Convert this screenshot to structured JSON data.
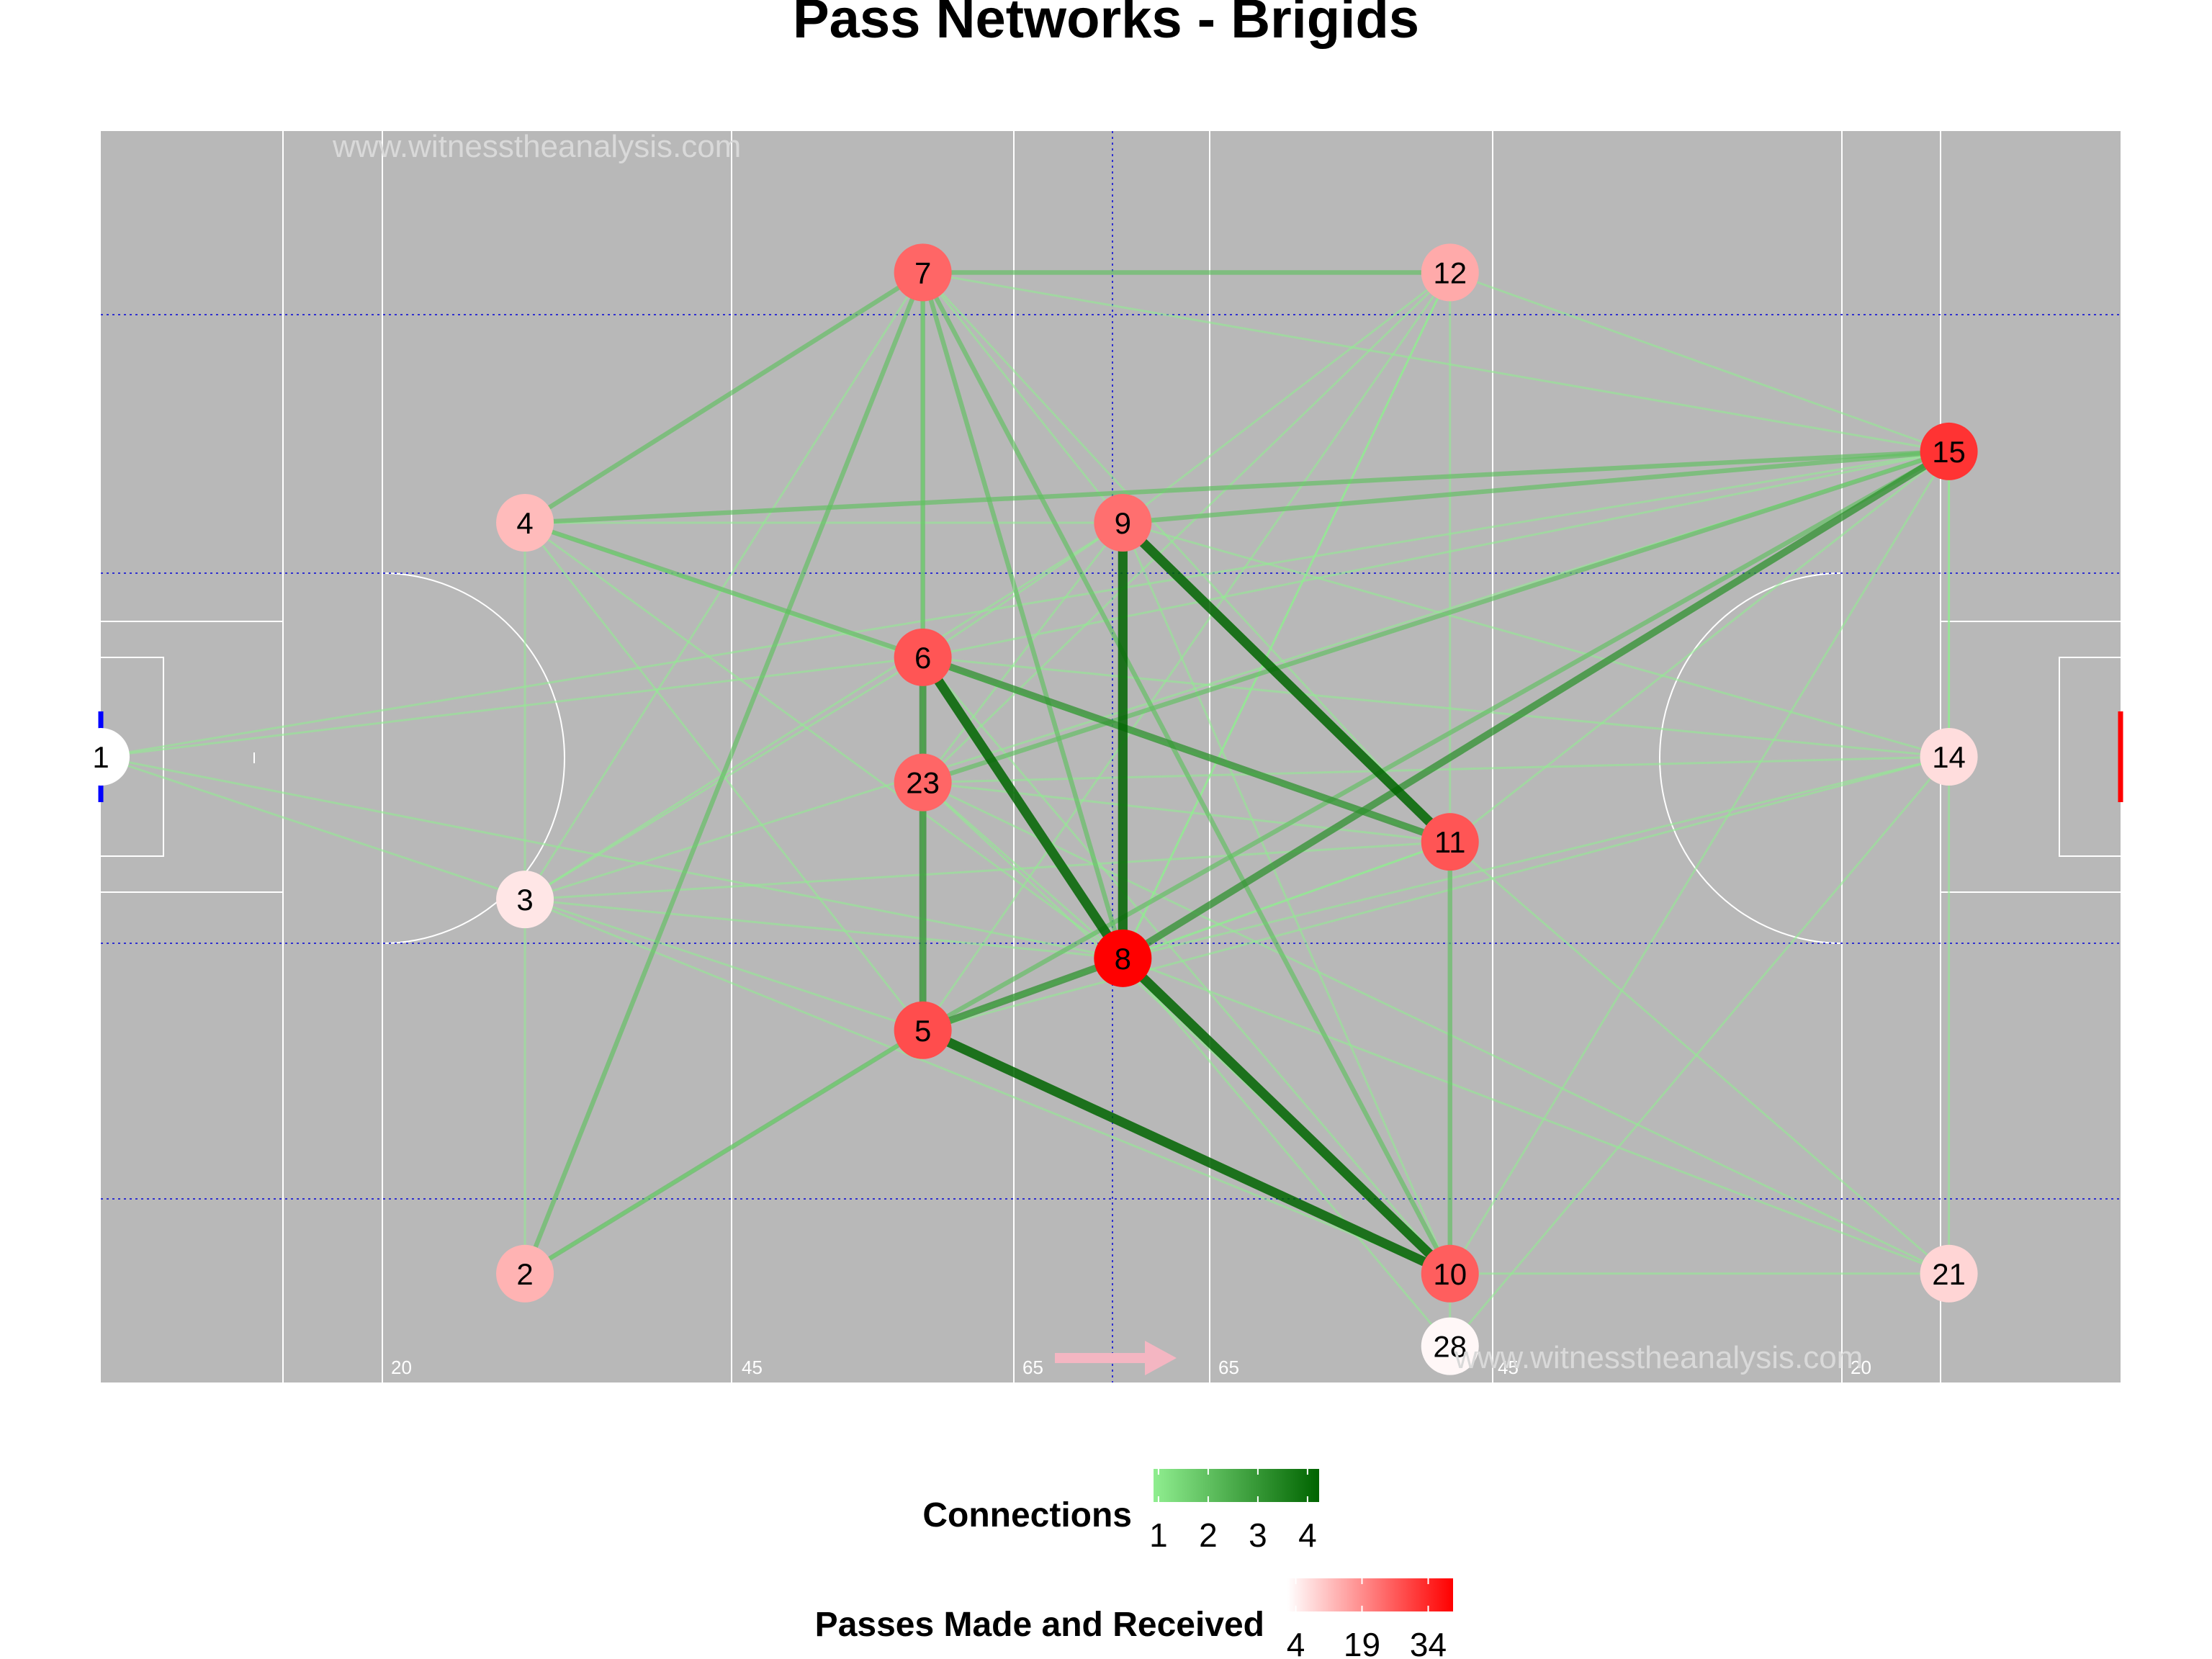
{
  "title": "Pass Networks - Brigids",
  "watermark": "www.witnesstheanalysis.com",
  "distance_labels": [
    "20",
    "45",
    "65",
    "65",
    "45",
    "20"
  ],
  "colors": {
    "pitch": "#b8b8b8",
    "pitch_lines": "#ffffff",
    "guide_lines": "#3030d0",
    "conn_low": "#90ee90",
    "conn_high": "#006400",
    "node_low": "#ffffff",
    "node_high": "#ff0000",
    "arrow": "#f4b6c2",
    "goal_left": "#0000ff",
    "goal_right": "#ff0000"
  },
  "chart_data": {
    "type": "network",
    "title": "Pass Networks - Brigids",
    "nodes": [
      {
        "id": "1",
        "x": 0.0,
        "y": 0.5,
        "passes": 4
      },
      {
        "id": "2",
        "x": 0.21,
        "y": 0.087,
        "passes": 13
      },
      {
        "id": "3",
        "x": 0.21,
        "y": 0.386,
        "passes": 7
      },
      {
        "id": "4",
        "x": 0.21,
        "y": 0.687,
        "passes": 12
      },
      {
        "id": "5",
        "x": 0.407,
        "y": 0.2815,
        "passes": 25
      },
      {
        "id": "6",
        "x": 0.407,
        "y": 0.5795,
        "passes": 24
      },
      {
        "id": "7",
        "x": 0.407,
        "y": 0.887,
        "passes": 22
      },
      {
        "id": "23",
        "x": 0.407,
        "y": 0.4795,
        "passes": 22
      },
      {
        "id": "8",
        "x": 0.506,
        "y": 0.339,
        "passes": 34
      },
      {
        "id": "9",
        "x": 0.506,
        "y": 0.687,
        "passes": 21
      },
      {
        "id": "10",
        "x": 0.668,
        "y": 0.087,
        "passes": 23
      },
      {
        "id": "11",
        "x": 0.668,
        "y": 0.432,
        "passes": 24
      },
      {
        "id": "12",
        "x": 0.668,
        "y": 0.887,
        "passes": 14
      },
      {
        "id": "28",
        "x": 0.668,
        "y": 0.029,
        "passes": 5
      },
      {
        "id": "14",
        "x": 0.915,
        "y": 0.5,
        "passes": 8
      },
      {
        "id": "15",
        "x": 0.915,
        "y": 0.744,
        "passes": 28
      },
      {
        "id": "21",
        "x": 0.915,
        "y": 0.087,
        "passes": 9
      }
    ],
    "edges": [
      [
        "9",
        "8",
        4
      ],
      [
        "9",
        "11",
        4
      ],
      [
        "6",
        "11",
        3
      ],
      [
        "6",
        "8",
        4
      ],
      [
        "5",
        "8",
        3
      ],
      [
        "5",
        "10",
        4
      ],
      [
        "8",
        "10",
        4
      ],
      [
        "8",
        "15",
        3
      ],
      [
        "6",
        "23",
        3
      ],
      [
        "23",
        "5",
        3
      ],
      [
        "7",
        "6",
        2
      ],
      [
        "7",
        "12",
        2
      ],
      [
        "7",
        "8",
        2
      ],
      [
        "7",
        "10",
        2
      ],
      [
        "7",
        "2",
        2
      ],
      [
        "7",
        "4",
        2
      ],
      [
        "4",
        "15",
        2
      ],
      [
        "9",
        "15",
        2
      ],
      [
        "4",
        "6",
        2
      ],
      [
        "23",
        "15",
        2
      ],
      [
        "5",
        "15",
        2
      ],
      [
        "11",
        "10",
        2
      ],
      [
        "2",
        "5",
        2
      ],
      [
        "12",
        "11",
        1
      ],
      [
        "12",
        "5",
        1
      ],
      [
        "12",
        "23",
        1
      ],
      [
        "12",
        "15",
        1
      ],
      [
        "12",
        "8",
        1
      ],
      [
        "7",
        "15",
        1
      ],
      [
        "7",
        "9",
        1
      ],
      [
        "7",
        "11",
        1
      ],
      [
        "7",
        "3",
        1
      ],
      [
        "7",
        "5",
        1
      ],
      [
        "1",
        "6",
        1
      ],
      [
        "1",
        "5",
        1
      ],
      [
        "1",
        "8",
        1
      ],
      [
        "1",
        "15",
        1
      ],
      [
        "4",
        "9",
        1
      ],
      [
        "4",
        "11",
        1
      ],
      [
        "4",
        "8",
        1
      ],
      [
        "4",
        "2",
        1
      ],
      [
        "4",
        "5",
        1
      ],
      [
        "3",
        "15",
        1
      ],
      [
        "3",
        "6",
        1
      ],
      [
        "3",
        "9",
        1
      ],
      [
        "3",
        "11",
        1
      ],
      [
        "3",
        "8",
        1
      ],
      [
        "3",
        "10",
        1
      ],
      [
        "9",
        "6",
        1
      ],
      [
        "9",
        "23",
        1
      ],
      [
        "9",
        "10",
        1
      ],
      [
        "9",
        "12",
        1
      ],
      [
        "9",
        "14",
        1
      ],
      [
        "6",
        "14",
        1
      ],
      [
        "6",
        "15",
        1
      ],
      [
        "6",
        "10",
        1
      ],
      [
        "23",
        "14",
        1
      ],
      [
        "23",
        "11",
        1
      ],
      [
        "23",
        "8",
        1
      ],
      [
        "23",
        "10",
        1
      ],
      [
        "23",
        "21",
        1
      ],
      [
        "5",
        "11",
        1
      ],
      [
        "5",
        "14",
        1
      ],
      [
        "5",
        "2",
        1
      ],
      [
        "8",
        "11",
        1
      ],
      [
        "8",
        "14",
        1
      ],
      [
        "8",
        "12",
        1
      ],
      [
        "8",
        "28",
        1
      ],
      [
        "11",
        "15",
        1
      ],
      [
        "11",
        "21",
        1
      ],
      [
        "10",
        "21",
        1
      ],
      [
        "10",
        "15",
        1
      ],
      [
        "28",
        "14",
        1
      ],
      [
        "28",
        "10",
        1
      ],
      [
        "21",
        "15",
        1
      ],
      [
        "21",
        "8",
        1
      ],
      [
        "14",
        "15",
        1
      ]
    ],
    "legend": [
      {
        "title": "Connections",
        "ticks": [
          "1",
          "2",
          "3",
          "4"
        ],
        "range": [
          1,
          4
        ]
      },
      {
        "title": "Passes Made and Received",
        "ticks": [
          "4",
          "19",
          "34"
        ],
        "range": [
          4,
          34
        ]
      }
    ],
    "legend_placement": "bottom"
  }
}
